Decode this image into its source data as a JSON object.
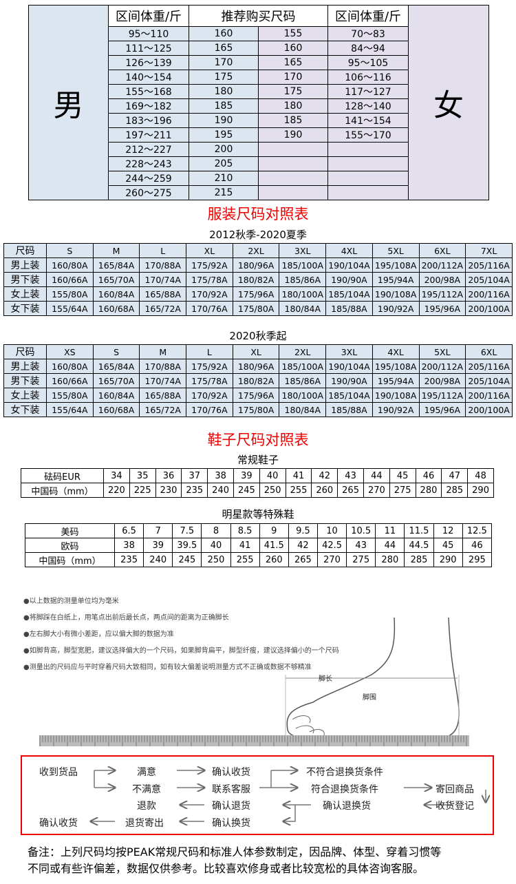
{
  "weight_table": {
    "men_label": "男",
    "women_label": "女",
    "headers": [
      "区间体重/斤",
      "推荐购买尺码",
      "区间体重/斤"
    ],
    "men_weights": [
      "95～110",
      "111～125",
      "126～139",
      "140～154",
      "155～168",
      "169～182",
      "183～196",
      "197～211",
      "212～227",
      "228～243",
      "244～259",
      "260～275"
    ],
    "men_sizes": [
      "160",
      "165",
      "170",
      "175",
      "180",
      "185",
      "190",
      "195",
      "200",
      "205",
      "210",
      "215"
    ],
    "women_sizes": [
      "155",
      "160",
      "165",
      "170",
      "175",
      "180",
      "185",
      "190",
      "",
      "",
      "",
      ""
    ],
    "women_weights": [
      "70～83",
      "84～94",
      "95～105",
      "106～116",
      "117～127",
      "128～140",
      "141～154",
      "155～170",
      "",
      "",
      "",
      ""
    ]
  },
  "clothing": {
    "title": "服装尺码对照表",
    "tables": [
      {
        "subtitle": "2012秋季-2020夏季",
        "header": [
          "尺码",
          "S",
          "M",
          "L",
          "XL",
          "2XL",
          "3XL",
          "4XL",
          "5XL",
          "6XL",
          "7XL"
        ],
        "rows": [
          [
            "男上装",
            "160/80A",
            "165/84A",
            "170/88A",
            "175/92A",
            "180/96A",
            "185/100A",
            "190/104A",
            "195/108A",
            "200/112A",
            "205/116A"
          ],
          [
            "男下装",
            "160/66A",
            "165/70A",
            "170/74A",
            "175/78A",
            "180/82A",
            "185/86A",
            "190/90A",
            "195/94A",
            "200/98A",
            "205/104A"
          ],
          [
            "女上装",
            "155/80A",
            "160/84A",
            "165/88A",
            "170/92A",
            "175/96A",
            "180/100A",
            "185/104A",
            "190/108A",
            "195/112A",
            "200/116A"
          ],
          [
            "女下装",
            "155/64A",
            "160/68A",
            "165/72A",
            "170/76A",
            "175/80A",
            "180/84A",
            "185/88A",
            "190/92A",
            "195/96A",
            "200/100A"
          ]
        ]
      },
      {
        "subtitle": "2020秋季起",
        "header": [
          "尺码",
          "XS",
          "S",
          "M",
          "L",
          "XL",
          "2XL",
          "3XL",
          "4XL",
          "5XL",
          "6XL"
        ],
        "rows": [
          [
            "男上装",
            "160/80A",
            "165/84A",
            "170/88A",
            "175/92A",
            "180/96A",
            "185/100A",
            "190/104A",
            "195/108A",
            "200/112A",
            "205/116A"
          ],
          [
            "男下装",
            "160/66A",
            "165/70A",
            "170/74A",
            "175/78A",
            "180/82A",
            "185/86A",
            "190/90A",
            "195/94A",
            "200/98A",
            "205/104A"
          ],
          [
            "女上装",
            "155/80A",
            "160/84A",
            "165/88A",
            "170/92A",
            "175/96A",
            "180/100A",
            "185/104A",
            "190/108A",
            "195/112A",
            "200/116A"
          ],
          [
            "女下装",
            "155/64A",
            "160/68A",
            "165/72A",
            "170/76A",
            "175/80A",
            "180/84A",
            "185/88A",
            "190/92A",
            "195/96A",
            "200/100A"
          ]
        ]
      }
    ]
  },
  "shoes": {
    "title": "鞋子尺码对照表",
    "tables": [
      {
        "subtitle": "常规鞋子",
        "rows": [
          [
            "砝码EUR",
            "34",
            "35",
            "36",
            "37",
            "38",
            "39",
            "40",
            "41",
            "42",
            "43",
            "44",
            "45",
            "46",
            "47",
            "48"
          ],
          [
            "中国码（mm）",
            "220",
            "225",
            "230",
            "235",
            "240",
            "245",
            "250",
            "255",
            "260",
            "265",
            "270",
            "275",
            "280",
            "285",
            "290"
          ]
        ]
      },
      {
        "subtitle": "明星款等特殊鞋",
        "rows": [
          [
            "美码",
            "6.5",
            "7",
            "7.5",
            "8",
            "8.5",
            "9",
            "9.5",
            "10",
            "10.5",
            "11",
            "11.5",
            "12",
            "12.5"
          ],
          [
            "欧码",
            "38",
            "39",
            "39.5",
            "40",
            "41",
            "41.5",
            "42",
            "42.5",
            "43",
            "44",
            "44.5",
            "45",
            "46"
          ],
          [
            "中国码（mm）",
            "235",
            "240",
            "245",
            "250",
            "255",
            "260",
            "265",
            "270",
            "275",
            "280",
            "285",
            "290",
            "295"
          ]
        ]
      }
    ]
  },
  "measure_tips": [
    "●以上数据的测量单位均为毫米",
    "●将脚踩在白纸上，用笔点出前后最长点，两点间的距离为正确脚长",
    "●左右脚大小有微小差距，应以偏大脚的数据为准",
    "●如脚背高，脚型宽肥，建议选择偏大的一个尺码，如果脚背扁平，脚型纤瘦，建议选择偏小的一个尺码",
    "●测量出的尺码应与平时穿着尺码大致相同，如有较大偏差说明测量方式不正确或数据不够精准"
  ],
  "foot_labels": {
    "length": "脚长",
    "girth": "脚围"
  },
  "flow": {
    "receive": "收到货品",
    "satisfied": "满意",
    "unsatisfied": "不满意",
    "confirm_receipt": "确认收货",
    "contact_service": "联系客服",
    "not_eligible": "不符合退换货条件",
    "eligible": "符合退换货条件",
    "send_back": "寄回商品",
    "register": "收货登记",
    "confirm_return_exchange": "确认退换货",
    "confirm_return": "确认退货",
    "refund": "退款",
    "confirm_exchange": "确认换货",
    "return_shipped": "退货寄出",
    "confirm_receipt_final": "确认收货"
  },
  "note": [
    "备注：上列尺码均按PEAK常规尺码和标准人体参数制定，因品牌、体型、穿着习惯等",
    "不同或有些许偏差，数据仅供参考。比较喜欢修身或者比较宽松的具体咨询客服。"
  ],
  "colors": {
    "accent_red": "#ee0000",
    "men_bg": "#dce6f1",
    "women_bg": "#e4dfec"
  }
}
